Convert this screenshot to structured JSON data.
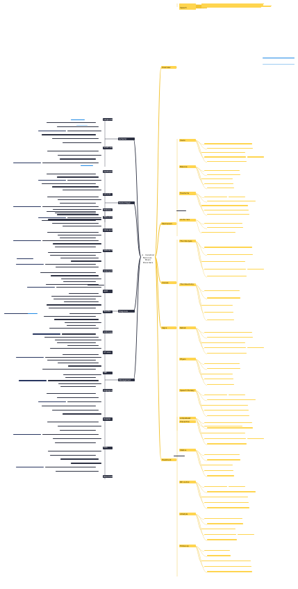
{
  "root": {
    "title": "A · Cerebral Nervous · Brain Disorders"
  },
  "colors": {
    "right": "#ffd54f",
    "left": "#2d3142",
    "accent": "#1e88e5",
    "line_right": "#f2c230",
    "line_left": "#2d3142"
  },
  "right_branches": [
    {
      "label": "Overview"
    },
    {
      "label": "Mechanism"
    },
    {
      "label": "Causes"
    },
    {
      "label": "Signs"
    },
    {
      "label": "Treatment"
    }
  ],
  "left_branches": [
    {
      "label": "Ischemic"
    },
    {
      "label": "Hemorrhagic"
    },
    {
      "label": "Diagnosis"
    },
    {
      "label": "Management"
    }
  ],
  "right_labels": [
    "Stroke",
    "Blood flow",
    "Clot",
    "Vessel wall",
    "Oxygen",
    "Neurons",
    "Cell death",
    "Penumbra",
    "Risk factors",
    "Hypertension",
    "Diabetes",
    "Smoking",
    "Age",
    "Cholesterol",
    "Heart disease",
    "Onset",
    "Sudden",
    "Weakness",
    "Numbness",
    "Speech",
    "Vision",
    "Balance",
    "Headache",
    "Acute care",
    "Thrombolysis",
    "Thrombectomy",
    "Rehab",
    "Physio",
    "Speech therapy",
    "Prevention",
    "Antiplatelet",
    "Statins",
    "BP control",
    "Lifestyle",
    "Follow-up"
  ],
  "left_labels": [
    "Large artery",
    "Small vessel",
    "Cardioembolic",
    "Lacunar",
    "Watershed",
    "Embolus",
    "Intracerebral",
    "Subarachnoid",
    "Aneurysm",
    "AVM",
    "Trauma",
    "Anticoagulant",
    "CT scan",
    "MRI",
    "Angiography",
    "Doppler",
    "ECG",
    "Blood tests",
    "NIHSS",
    "Airway",
    "Glucose",
    "Temperature",
    "Swallow",
    "Mobilization",
    "Discharge"
  ]
}
